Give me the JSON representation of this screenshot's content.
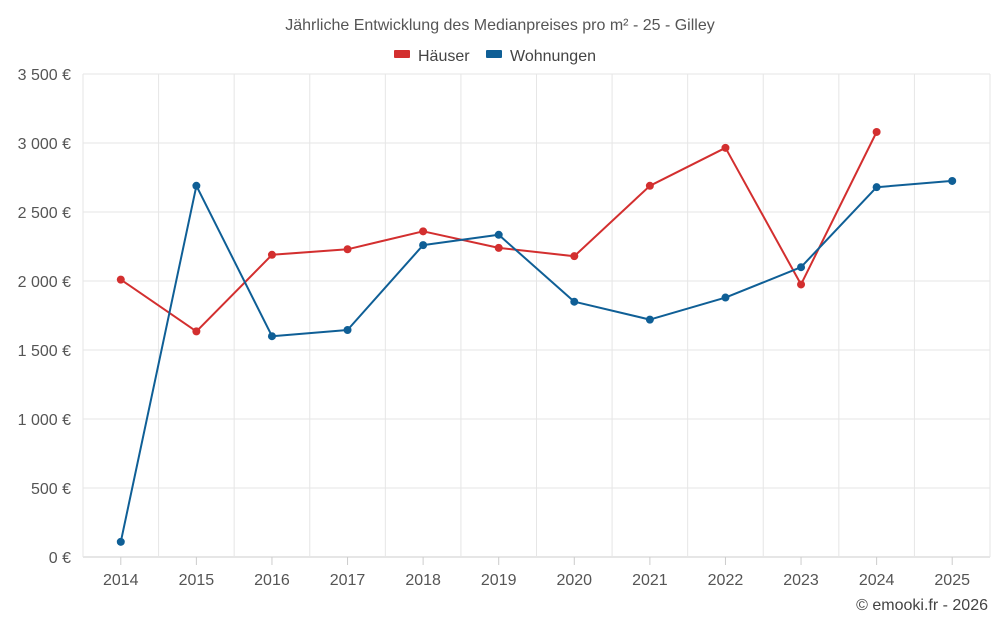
{
  "chart_data": {
    "type": "line",
    "title": "Jährliche Entwicklung des Medianpreises pro m² - 25 - Gilley",
    "categories": [
      "2014",
      "2015",
      "2016",
      "2017",
      "2018",
      "2019",
      "2020",
      "2021",
      "2022",
      "2023",
      "2024",
      "2025"
    ],
    "series": [
      {
        "name": "Häuser",
        "color": "#d32f2f",
        "values": [
          2010,
          1635,
          2190,
          2230,
          2360,
          2240,
          2180,
          2690,
          2965,
          1975,
          3080,
          null
        ]
      },
      {
        "name": "Wohnungen",
        "color": "#0f5f96",
        "values": [
          110,
          2690,
          1600,
          1645,
          2260,
          2335,
          1850,
          1720,
          1880,
          2100,
          2680,
          2725
        ]
      }
    ],
    "y_ticks": [
      "0 €",
      "500 €",
      "1 000 €",
      "1 500 €",
      "2 000 €",
      "2 500 €",
      "3 000 €",
      "3 500 €"
    ],
    "ylim": [
      0,
      3500
    ],
    "grid": true,
    "legend_position": "top-center",
    "credit": "© emooki.fr - 2026"
  }
}
